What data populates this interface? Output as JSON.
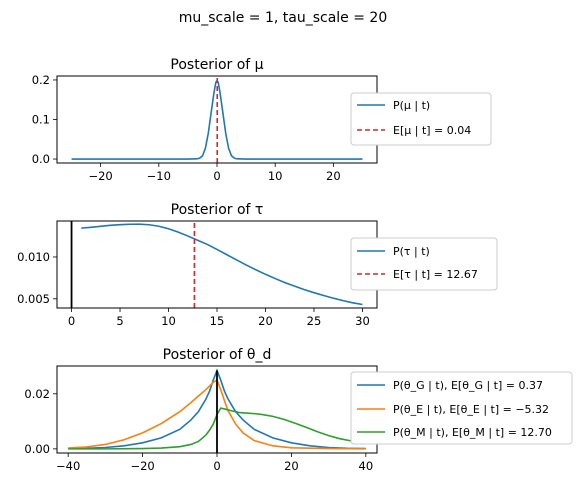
{
  "suptitle": "mu_scale = 1, tau_scale = 20",
  "chart_data": [
    {
      "type": "line",
      "title": "Posterior of μ",
      "xlim": [
        -27.5,
        27.5
      ],
      "ylim": [
        -0.01,
        0.21
      ],
      "xticks": [
        -20,
        -10,
        0,
        10,
        20
      ],
      "xtick_labels": [
        "−20",
        "−10",
        "0",
        "10",
        "20"
      ],
      "yticks": [
        0.0,
        0.1,
        0.2
      ],
      "ytick_labels": [
        "0.0",
        "0.1",
        "0.2"
      ],
      "grid": false,
      "legend_placement": "right",
      "series": [
        {
          "name": "P(μ | t)",
          "color": "#1f77b4",
          "style": "solid",
          "points": [
            [
              -25,
              0
            ],
            [
              -5,
              0
            ],
            [
              -3.5,
              0.0005
            ],
            [
              -3,
              0.002
            ],
            [
              -2.5,
              0.008
            ],
            [
              -2,
              0.027
            ],
            [
              -1.5,
              0.065
            ],
            [
              -1,
              0.118
            ],
            [
              -0.5,
              0.17
            ],
            [
              -0.2,
              0.194
            ],
            [
              0,
              0.198
            ],
            [
              0.2,
              0.194
            ],
            [
              0.5,
              0.17
            ],
            [
              1,
              0.118
            ],
            [
              1.5,
              0.065
            ],
            [
              2,
              0.027
            ],
            [
              2.5,
              0.008
            ],
            [
              3,
              0.002
            ],
            [
              3.5,
              0.0005
            ],
            [
              5,
              0
            ],
            [
              25,
              0
            ]
          ]
        }
      ],
      "vlines": [
        {
          "name": "E[μ | t] = 0.04",
          "x": 0.04,
          "color": "#d62728",
          "style": "dashed"
        }
      ]
    },
    {
      "type": "line",
      "title": "Posterior of τ",
      "xlim": [
        -1.5,
        31.5
      ],
      "ylim": [
        0.0039,
        0.0143
      ],
      "xticks": [
        0,
        5,
        10,
        15,
        20,
        25,
        30
      ],
      "xtick_labels": [
        "0",
        "5",
        "10",
        "15",
        "20",
        "25",
        "30"
      ],
      "yticks": [
        0.005,
        0.01
      ],
      "ytick_labels": [
        "0.005",
        "0.010"
      ],
      "grid": false,
      "legend_placement": "right",
      "series": [
        {
          "name": "P(τ | t)",
          "color": "#1f77b4",
          "style": "solid",
          "points": [
            [
              1,
              0.01345
            ],
            [
              2,
              0.01355
            ],
            [
              3,
              0.01367
            ],
            [
              4,
              0.01378
            ],
            [
              5,
              0.01386
            ],
            [
              6,
              0.01391
            ],
            [
              7,
              0.01392
            ],
            [
              8,
              0.01385
            ],
            [
              9,
              0.01367
            ],
            [
              10,
              0.01337
            ],
            [
              11,
              0.01297
            ],
            [
              12,
              0.0125
            ],
            [
              13,
              0.012
            ],
            [
              14,
              0.0115
            ],
            [
              15,
              0.0109
            ],
            [
              16,
              0.01028
            ],
            [
              17,
              0.00966
            ],
            [
              18,
              0.00905
            ],
            [
              19,
              0.00847
            ],
            [
              20,
              0.00793
            ],
            [
              21,
              0.00742
            ],
            [
              22,
              0.00694
            ],
            [
              23,
              0.00651
            ],
            [
              24,
              0.0061
            ],
            [
              25,
              0.00573
            ],
            [
              26,
              0.00539
            ],
            [
              27,
              0.00507
            ],
            [
              28,
              0.00478
            ],
            [
              29,
              0.00452
            ],
            [
              30,
              0.00432
            ]
          ]
        }
      ],
      "vlines": [
        {
          "name": "",
          "x": 0,
          "color": "#000000",
          "style": "solid"
        },
        {
          "name": "E[τ | t] = 12.67",
          "x": 12.67,
          "color": "#d62728",
          "style": "dashed"
        }
      ]
    },
    {
      "type": "line",
      "title": "Posterior of θ_d",
      "xlim": [
        -43,
        43
      ],
      "ylim": [
        -0.0015,
        0.0301
      ],
      "xticks": [
        -40,
        -20,
        0,
        20,
        40
      ],
      "xtick_labels": [
        "−40",
        "−20",
        "0",
        "20",
        "40"
      ],
      "yticks": [
        0.0,
        0.02
      ],
      "ytick_labels": [
        "0.00",
        "0.02"
      ],
      "grid": false,
      "legend_placement": "right",
      "series": [
        {
          "name": "P(θ_G | t),  E[θ_G | t] = 0.37",
          "color": "#1f77b4",
          "style": "solid",
          "points": [
            [
              -40,
              0.0001
            ],
            [
              -35,
              0.0002
            ],
            [
              -30,
              0.0005
            ],
            [
              -25,
              0.0011
            ],
            [
              -20,
              0.0022
            ],
            [
              -15,
              0.004
            ],
            [
              -10,
              0.0071
            ],
            [
              -7,
              0.0105
            ],
            [
              -5,
              0.0135
            ],
            [
              -3,
              0.018
            ],
            [
              -2,
              0.021
            ],
            [
              -1,
              0.025
            ],
            [
              0,
              0.0285
            ],
            [
              1,
              0.025
            ],
            [
              2,
              0.021
            ],
            [
              3,
              0.018
            ],
            [
              5,
              0.0135
            ],
            [
              7,
              0.0105
            ],
            [
              10,
              0.0071
            ],
            [
              15,
              0.004
            ],
            [
              20,
              0.0022
            ],
            [
              25,
              0.0011
            ],
            [
              30,
              0.0005
            ],
            [
              35,
              0.0002
            ],
            [
              40,
              0.0001
            ]
          ]
        },
        {
          "name": "P(θ_E | t),  E[θ_E | t] = −5.32",
          "color": "#ff7f0e",
          "style": "solid",
          "points": [
            [
              -40,
              0.0003
            ],
            [
              -35,
              0.0007
            ],
            [
              -30,
              0.0016
            ],
            [
              -25,
              0.0033
            ],
            [
              -20,
              0.0058
            ],
            [
              -15,
              0.0092
            ],
            [
              -10,
              0.0135
            ],
            [
              -7,
              0.0168
            ],
            [
              -5,
              0.0192
            ],
            [
              -3,
              0.0215
            ],
            [
              -1,
              0.0242
            ],
            [
              0,
              0.025
            ],
            [
              1,
              0.0215
            ],
            [
              2,
              0.0175
            ],
            [
              3,
              0.0138
            ],
            [
              5,
              0.009
            ],
            [
              7,
              0.0058
            ],
            [
              10,
              0.003
            ],
            [
              15,
              0.0011
            ],
            [
              20,
              0.0004
            ],
            [
              30,
              0.0001
            ],
            [
              40,
              0.0
            ]
          ]
        },
        {
          "name": "P(θ_M | t),  E[θ_M | t] = 12.70",
          "color": "#2ca02c",
          "style": "solid",
          "points": [
            [
              -40,
              0.0
            ],
            [
              -30,
              0.0
            ],
            [
              -20,
              0.0001
            ],
            [
              -15,
              0.0003
            ],
            [
              -10,
              0.0008
            ],
            [
              -7,
              0.0016
            ],
            [
              -5,
              0.0027
            ],
            [
              -3,
              0.005
            ],
            [
              -2,
              0.0068
            ],
            [
              -1,
              0.009
            ],
            [
              0,
              0.0125
            ],
            [
              1,
              0.0148
            ],
            [
              2,
              0.0145
            ],
            [
              4,
              0.0138
            ],
            [
              6,
              0.0132
            ],
            [
              8,
              0.013
            ],
            [
              10,
              0.0128
            ],
            [
              12,
              0.0125
            ],
            [
              15,
              0.0118
            ],
            [
              18,
              0.0107
            ],
            [
              21,
              0.0093
            ],
            [
              24,
              0.0078
            ],
            [
              27,
              0.0062
            ],
            [
              30,
              0.0048
            ],
            [
              33,
              0.0037
            ],
            [
              36,
              0.0029
            ],
            [
              40,
              0.0021
            ]
          ]
        }
      ],
      "vlines": [
        {
          "name": "",
          "x": 0,
          "color": "#000000",
          "style": "solid",
          "ymax": 0.0285
        }
      ]
    }
  ]
}
